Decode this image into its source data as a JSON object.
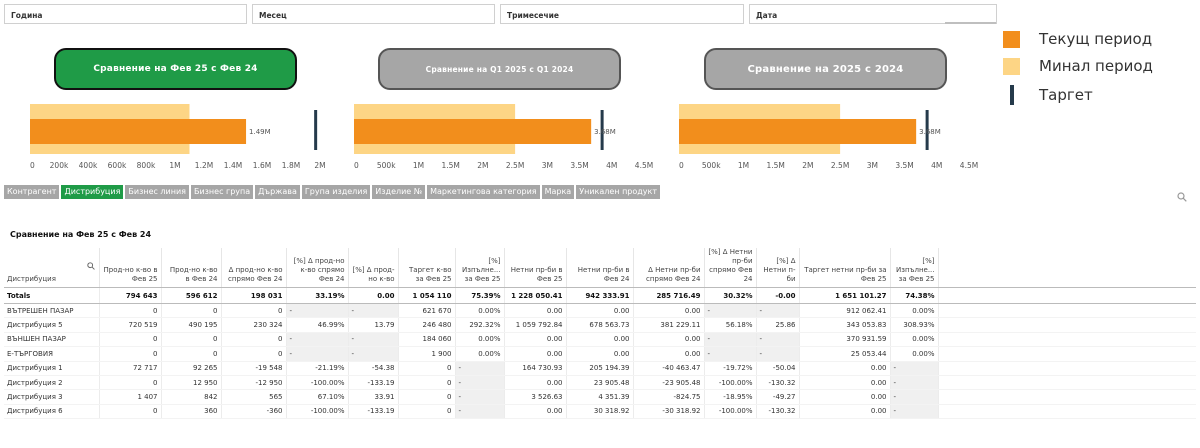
{
  "filters": [
    {
      "label": "Година"
    },
    {
      "label": "Месец"
    },
    {
      "label": "Тримесечие"
    },
    {
      "label": "Дата"
    }
  ],
  "comparison_buttons": [
    {
      "label": "Сравнение на Фев 25 с Фев 24",
      "state": "active"
    },
    {
      "label": "Сравнение на Q1 2025 с Q1 2024",
      "state": "inactive"
    },
    {
      "label": "Сравнение на 2025 с 2024",
      "state": "inactive"
    }
  ],
  "legend": [
    {
      "label": "Текущ период",
      "color": "#f28e1c",
      "type": "square"
    },
    {
      "label": "Минал период",
      "color": "#fdd585",
      "type": "square"
    },
    {
      "label": "Таргет",
      "color": "#253a4b",
      "type": "line"
    }
  ],
  "chart_data": [
    {
      "type": "bar",
      "orientation": "horizontal",
      "series": [
        {
          "name": "Минал период",
          "values": [
            1.1
          ]
        },
        {
          "name": "Текущ период",
          "values": [
            1.49
          ]
        },
        {
          "name": "Таргет",
          "values": [
            1.97
          ]
        }
      ],
      "value_label": "1.49M",
      "xlim": [
        0,
        2.0
      ],
      "xticks": [
        "0",
        "200k",
        "400k",
        "600k",
        "800k",
        "1M",
        "1.2M",
        "1.4M",
        "1.6M",
        "1.8M",
        "2M"
      ]
    },
    {
      "type": "bar",
      "orientation": "horizontal",
      "series": [
        {
          "name": "Минал период",
          "values": [
            2.5
          ]
        },
        {
          "name": "Текущ период",
          "values": [
            3.68
          ]
        },
        {
          "name": "Таргет",
          "values": [
            3.85
          ]
        }
      ],
      "value_label": "3.68M",
      "xlim": [
        0,
        4.5
      ],
      "xticks": [
        "0",
        "500k",
        "1M",
        "1.5M",
        "2M",
        "2.5M",
        "3M",
        "3.5M",
        "4M",
        "4.5M"
      ]
    },
    {
      "type": "bar",
      "orientation": "horizontal",
      "series": [
        {
          "name": "Минал период",
          "values": [
            2.5
          ]
        },
        {
          "name": "Текущ период",
          "values": [
            3.68
          ]
        },
        {
          "name": "Таргет",
          "values": [
            3.85
          ]
        }
      ],
      "value_label": "3.68M",
      "xlim": [
        0,
        4.5
      ],
      "xticks": [
        "0",
        "500k",
        "1M",
        "1.5M",
        "2M",
        "2.5M",
        "3M",
        "3.5M",
        "4M",
        "4.5M"
      ]
    }
  ],
  "dimension_tabs": [
    {
      "label": "Контрагент",
      "active": false
    },
    {
      "label": "Дистрибуция",
      "active": true
    },
    {
      "label": "Бизнес линия",
      "active": false
    },
    {
      "label": "Бизнес група",
      "active": false
    },
    {
      "label": "Държава",
      "active": false
    },
    {
      "label": "Група изделия",
      "active": false
    },
    {
      "label": "Изделие №",
      "active": false
    },
    {
      "label": "Маркетингова категория",
      "active": false
    },
    {
      "label": "Марка",
      "active": false
    },
    {
      "label": "Уникален продукт",
      "active": false
    }
  ],
  "table": {
    "title": "Сравнение на Фев 25 с Фев 24",
    "columns": [
      "Дистрибуция",
      "Прод-но к-во в Фев 25",
      "Прод-но к-во в Фев 24",
      "Δ прод-но к-во спрямо Фев 24",
      "[%] Δ прод-но к-во спрямо Фев 24",
      "[%] Δ прод-но к-во",
      "Таргет к-во за Фев 25",
      "[%] Изпълне... за Фев 25",
      "Нетни пр-би в Фев 25",
      "Нетни пр-би в Фев 24",
      "Δ Нетни пр-би спрямо Фев 24",
      "[%] Δ Нетни пр-би спрямо Фев 24",
      "[%] Δ Нетни п-би",
      "Таргет нетни пр-би за Фев 25",
      "[%] Изпълне... за Фев 25"
    ],
    "totals": [
      "Totals",
      "794 643",
      "596 612",
      "198 031",
      "33.19%",
      "0.00",
      "1 054 110",
      "75.39%",
      "1 228 050.41",
      "942 333.91",
      "285 716.49",
      "30.32%",
      "-0.00",
      "1 651 101.27",
      "74.38%"
    ],
    "rows": [
      {
        "cells": [
          "ВЪТРЕШЕН ПАЗАР",
          "0",
          "0",
          "0",
          "-",
          "-",
          "621 670",
          "0.00%",
          "0.00",
          "0.00",
          "0.00",
          "-",
          "-",
          "912 062.41",
          "0.00%"
        ]
      },
      {
        "cells": [
          "Дистрибуция 5",
          "720 519",
          "490 195",
          "230 324",
          "46.99%",
          "13.79",
          "246 480",
          "292.32%",
          "1 059 792.84",
          "678 563.73",
          "381 229.11",
          "56.18%",
          "25.86",
          "343 053.83",
          "308.93%"
        ]
      },
      {
        "cells": [
          "ВЪНШЕН ПАЗАР",
          "0",
          "0",
          "0",
          "-",
          "-",
          "184 060",
          "0.00%",
          "0.00",
          "0.00",
          "0.00",
          "-",
          "-",
          "370 931.59",
          "0.00%"
        ]
      },
      {
        "cells": [
          "Е-ТЪРГОВИЯ",
          "0",
          "0",
          "0",
          "-",
          "-",
          "1 900",
          "0.00%",
          "0.00",
          "0.00",
          "0.00",
          "-",
          "-",
          "25 053.44",
          "0.00%"
        ]
      },
      {
        "cells": [
          "Дистрибуция 1",
          "72 717",
          "92 265",
          "-19 548",
          "-21.19%",
          "-54.38",
          "0",
          "-",
          "164 730.93",
          "205 194.39",
          "-40 463.47",
          "-19.72%",
          "-50.04",
          "0.00",
          "-"
        ]
      },
      {
        "cells": [
          "Дистрибуция 2",
          "0",
          "12 950",
          "-12 950",
          "-100.00%",
          "-133.19",
          "0",
          "-",
          "0.00",
          "23 905.48",
          "-23 905.48",
          "-100.00%",
          "-130.32",
          "0.00",
          "-"
        ]
      },
      {
        "cells": [
          "Дистрибуция 3",
          "1 407",
          "842",
          "565",
          "67.10%",
          "33.91",
          "0",
          "-",
          "3 526.63",
          "4 351.39",
          "-824.75",
          "-18.95%",
          "-49.27",
          "0.00",
          "-"
        ]
      },
      {
        "cells": [
          "Дистрибуция 6",
          "0",
          "360",
          "-360",
          "-100.00%",
          "-133.19",
          "0",
          "-",
          "0.00",
          "30 318.92",
          "-30 318.92",
          "-100.00%",
          "-130.32",
          "0.00",
          "-"
        ]
      }
    ]
  }
}
